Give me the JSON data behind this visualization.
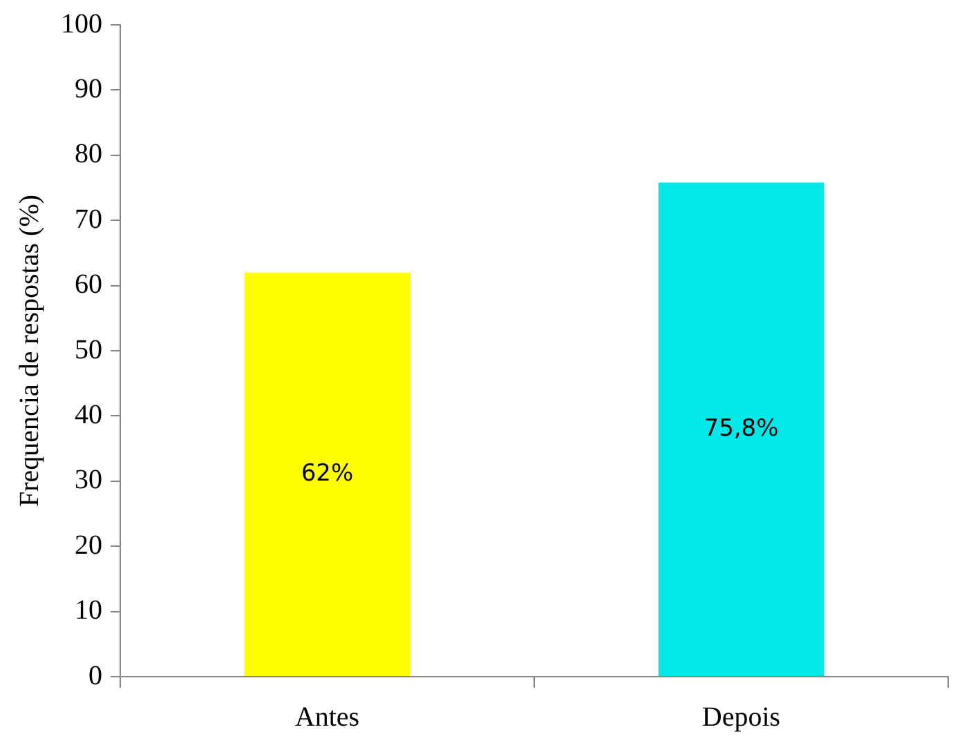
{
  "chart_data": {
    "type": "bar",
    "ylabel": "Frequencia de respostas (%)",
    "categories": [
      "Antes",
      "Depois"
    ],
    "values": [
      62,
      75.8
    ],
    "colors": [
      "#ffff00",
      "#00e8e8"
    ],
    "value_labels": [
      "62%",
      "75,8%"
    ],
    "ylim": [
      0,
      100
    ],
    "yticks": [
      0,
      10,
      20,
      30,
      40,
      50,
      60,
      70,
      80,
      90,
      100
    ],
    "grid": false,
    "legend": false
  }
}
